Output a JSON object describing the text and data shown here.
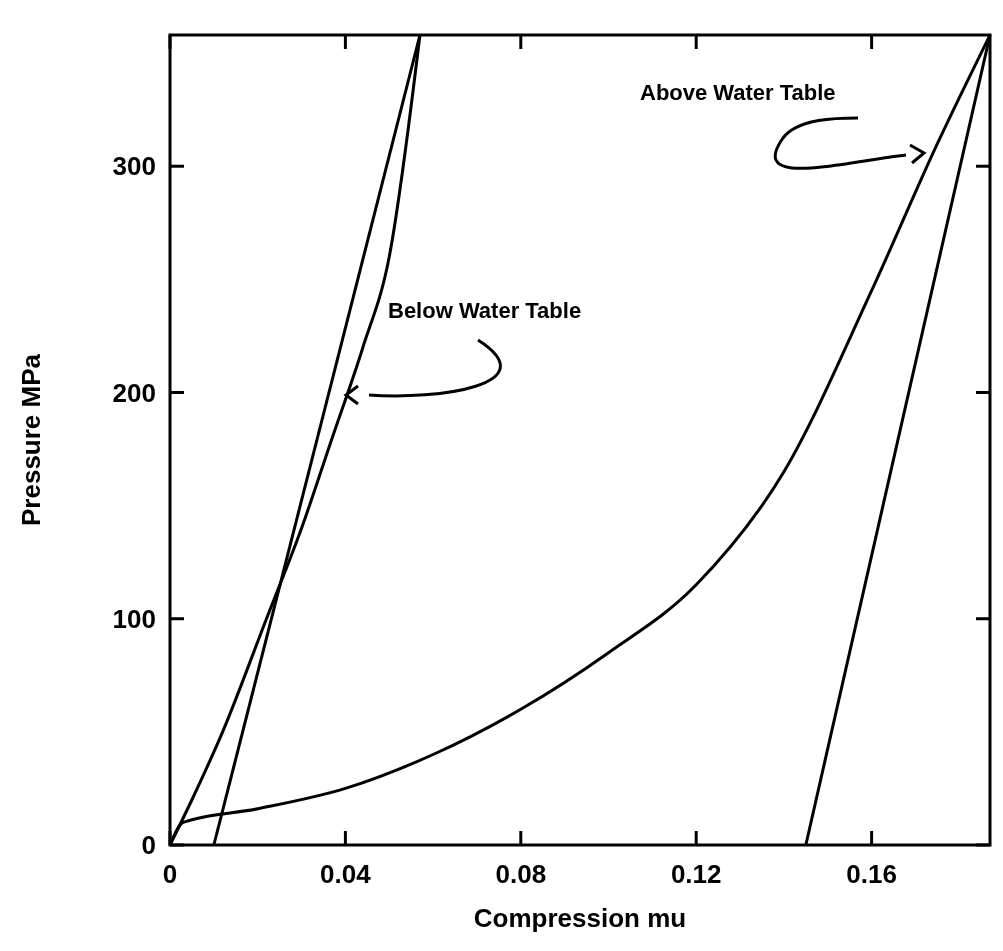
{
  "chart_data": {
    "type": "line",
    "xlabel": "Compression mu",
    "ylabel": "Pressure  MPa",
    "xlim": [
      0,
      0.187
    ],
    "ylim": [
      0,
      358
    ],
    "xticks": [
      0,
      0.04,
      0.08,
      0.12,
      0.16
    ],
    "yticks": [
      0,
      100,
      200,
      300
    ],
    "grid": false,
    "marker": "none",
    "line_style": "solid",
    "series": [
      {
        "color": "#000000",
        "x": [
          0,
          0.005,
          0.012,
          0.022,
          0.03,
          0.037,
          0.044,
          0.05,
          0.057
        ],
        "values": [
          0,
          20,
          50,
          100,
          140,
          180,
          220,
          260,
          358
        ]
      },
      {
        "color": "#000000",
        "x": [
          0.01,
          0.057
        ],
        "values": [
          0,
          358
        ]
      },
      {
        "color": "#000000",
        "x": [
          0,
          0.003,
          0.02,
          0.04,
          0.06,
          0.08,
          0.1,
          0.12,
          0.14,
          0.16,
          0.175,
          0.187
        ],
        "values": [
          0,
          10,
          16,
          25,
          40,
          60,
          85,
          115,
          165,
          245,
          310,
          358
        ]
      },
      {
        "color": "#000000",
        "x": [
          0.145,
          0.187
        ],
        "values": [
          0,
          358
        ]
      }
    ],
    "annotations": [
      "Below Water Table",
      "Above Water Table"
    ]
  }
}
